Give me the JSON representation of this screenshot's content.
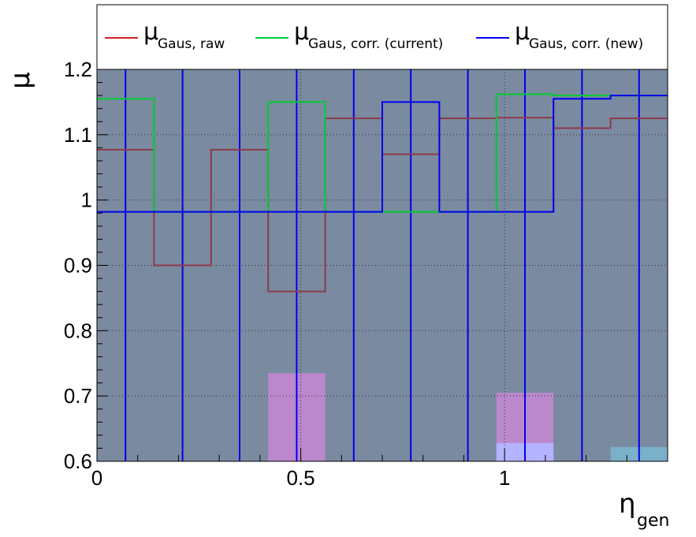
{
  "chart_data": {
    "type": "line",
    "title": "",
    "xlabel": "η_gen",
    "ylabel": "μ",
    "xlim": [
      0,
      1.4
    ],
    "ylim": [
      0.6,
      1.2
    ],
    "grid": true,
    "legend_position": "top, above plot (3 columns)",
    "x_ticks": [
      0,
      0.5,
      1
    ],
    "x_tick_labels": [
      "0",
      "0.5",
      "1"
    ],
    "y_ticks": [
      0.6,
      0.7,
      0.8,
      0.9,
      1.0,
      1.1,
      1.2
    ],
    "y_tick_labels": [
      "0.6",
      "0.7",
      "0.8",
      "0.9",
      "1",
      "1.1",
      "1.2"
    ],
    "bin_edges": [
      0,
      0.14,
      0.28,
      0.42,
      0.56,
      0.7,
      0.84,
      0.98,
      1.12,
      1.26,
      1.4
    ],
    "series": [
      {
        "key": "raw",
        "base": "μ",
        "subscript": "Gaus, raw",
        "color": "#cc2222",
        "plot_color": "#8b3a4a",
        "values": [
          1.077,
          0.9,
          1.077,
          0.86,
          1.125,
          1.07,
          1.125,
          1.126,
          1.11,
          1.125
        ]
      },
      {
        "key": "corr_current",
        "base": "μ",
        "subscript": "Gaus, corr. (current)",
        "color": "#00cc33",
        "plot_color": "#00cc33",
        "values": [
          1.155,
          0.982,
          0.982,
          1.15,
          0.982,
          0.982,
          0.982,
          1.162,
          1.16,
          1.16
        ]
      },
      {
        "key": "corr_new",
        "base": "μ",
        "subscript": "Gaus, corr. (new)",
        "color": "#0000ee",
        "plot_color": "#0000ee",
        "values": [
          0.982,
          0.982,
          0.982,
          0.982,
          0.982,
          1.15,
          0.982,
          0.982,
          1.155,
          1.16
        ]
      }
    ],
    "vertical_lines_x": [
      0.07,
      0.21,
      0.35,
      0.49,
      0.63,
      0.77,
      0.91,
      1.05,
      1.19,
      1.33
    ],
    "filled_bars": [
      {
        "x0": 0.42,
        "x1": 0.56,
        "y": 0.735,
        "color": "#bb88cc"
      },
      {
        "x0": 0.98,
        "x1": 1.12,
        "y": 0.705,
        "color": "#bb88cc"
      },
      {
        "x0": 0.98,
        "x1": 1.12,
        "y": 0.628,
        "color": "#b3b3ff"
      },
      {
        "x0": 1.26,
        "x1": 1.4,
        "y": 0.622,
        "color": "#7ab0c8"
      }
    ],
    "plot_background": "#7a8aa0"
  }
}
